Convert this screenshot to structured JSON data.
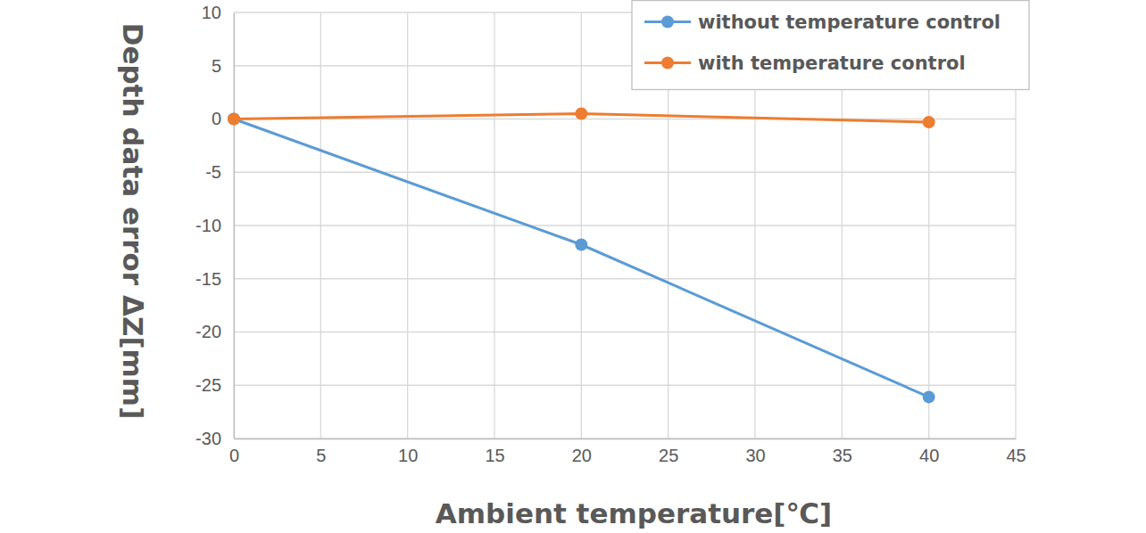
{
  "chart_data": {
    "type": "line",
    "x_label": "Ambient temperature[℃]",
    "y_label": "Depth data error ΔZ[mm]",
    "x": [
      0,
      20,
      40
    ],
    "series": [
      {
        "name": "without temperature control",
        "color": "#5b9bd5",
        "marker": "circle",
        "values": [
          0,
          -11.8,
          -26.1
        ]
      },
      {
        "name": "with temperature control",
        "color": "#ed7d31",
        "marker": "circle",
        "values": [
          0,
          0.5,
          -0.3
        ]
      }
    ],
    "xlim": [
      0,
      45
    ],
    "xticks": [
      0,
      5,
      10,
      15,
      20,
      25,
      30,
      35,
      40,
      45
    ],
    "ylim": [
      -30,
      10
    ],
    "yticks": [
      -30,
      -25,
      -20,
      -15,
      -10,
      -5,
      0,
      5,
      10
    ],
    "grid": true,
    "legend": "upper right"
  }
}
